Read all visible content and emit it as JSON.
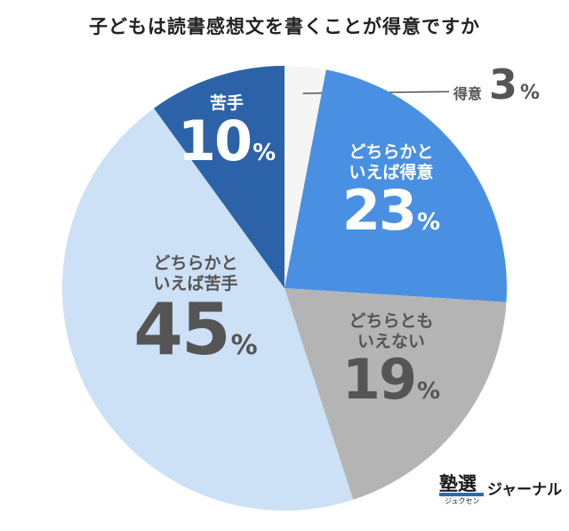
{
  "chart_data": {
    "type": "pie",
    "title": "子どもは読書感想文を書くことが得意ですか",
    "unit": "%",
    "slices": [
      {
        "name": "得意",
        "value": 3,
        "color": "#f5f5f5"
      },
      {
        "name": "どちらかと\nいえば得意",
        "value": 23,
        "color": "#4a90e2"
      },
      {
        "name": "どちらとも\nいえない",
        "value": 19,
        "color": "#b4b4b4"
      },
      {
        "name": "どちらかと\nいえば苦手",
        "value": 45,
        "color": "#cce0f6"
      },
      {
        "name": "苦手",
        "value": 10,
        "color": "#2c63a8"
      }
    ]
  },
  "logo": {
    "kanji": "塾選",
    "reading": "ジュクセン",
    "brand": "ジャーナル"
  }
}
